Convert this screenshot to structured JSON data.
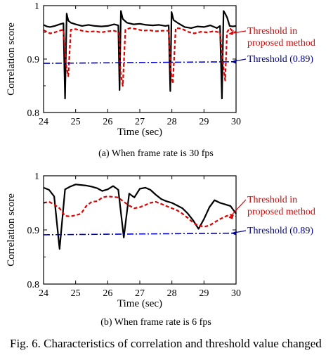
{
  "caption": "Fig. 6.    Characteristics of correlation and threshold value changed",
  "colors": {
    "correlation": "#000000",
    "proposed_threshold": "#e00000",
    "fixed_threshold": "#0000cc",
    "annotation_blue": "#000099"
  },
  "chart_data": [
    {
      "type": "line",
      "subtitle": "(a) When frame rate is 30 fps",
      "xlabel": "Time (sec)",
      "ylabel": "Correlation score",
      "xlim": [
        24,
        30
      ],
      "ylim": [
        0.8,
        1.0
      ],
      "xticks": [
        "24",
        "25",
        "26",
        "27",
        "28",
        "29",
        "30"
      ],
      "yticks": [
        "0.8",
        "0.9",
        "1"
      ],
      "grid": false,
      "annotations": {
        "proposed_line1": "Threshold in",
        "proposed_line2": "proposed method",
        "fixed": "Threshold (0.89)"
      },
      "series": [
        {
          "style": "solid-black",
          "x": [
            24.0,
            24.1,
            24.2,
            24.35,
            24.5,
            24.62,
            24.67,
            24.72,
            24.77,
            24.85,
            25.0,
            25.2,
            25.4,
            25.6,
            25.8,
            26.0,
            26.2,
            26.33,
            26.37,
            26.41,
            26.47,
            26.6,
            26.8,
            27.0,
            27.2,
            27.4,
            27.6,
            27.8,
            27.9,
            27.95,
            27.99,
            28.05,
            28.2,
            28.4,
            28.6,
            28.8,
            29.0,
            29.2,
            29.4,
            29.5,
            29.56,
            29.61,
            29.66,
            29.72,
            29.8,
            29.9,
            30.0
          ],
          "y": [
            0.964,
            0.961,
            0.96,
            0.962,
            0.965,
            0.967,
            0.826,
            0.985,
            0.972,
            0.968,
            0.965,
            0.962,
            0.964,
            0.962,
            0.961,
            0.962,
            0.965,
            0.963,
            0.842,
            0.99,
            0.975,
            0.968,
            0.965,
            0.966,
            0.964,
            0.963,
            0.964,
            0.962,
            0.963,
            0.84,
            0.988,
            0.973,
            0.967,
            0.96,
            0.958,
            0.961,
            0.96,
            0.963,
            0.958,
            0.962,
            0.826,
            0.99,
            0.985,
            0.978,
            0.962,
            0.961,
            0.962
          ]
        },
        {
          "style": "dashed-red",
          "x": [
            24.0,
            24.1,
            24.2,
            24.35,
            24.5,
            24.62,
            24.7,
            24.77,
            24.85,
            25.0,
            25.2,
            25.4,
            25.6,
            25.8,
            26.0,
            26.2,
            26.35,
            26.4,
            26.47,
            26.55,
            26.7,
            26.9,
            27.1,
            27.3,
            27.5,
            27.7,
            27.9,
            27.97,
            28.03,
            28.12,
            28.3,
            28.5,
            28.7,
            28.9,
            29.1,
            29.3,
            29.5,
            29.6,
            29.66,
            29.72,
            29.8,
            29.9,
            30.0
          ],
          "y": [
            0.954,
            0.951,
            0.948,
            0.95,
            0.953,
            0.955,
            0.89,
            0.868,
            0.955,
            0.956,
            0.953,
            0.951,
            0.952,
            0.95,
            0.952,
            0.953,
            0.95,
            0.875,
            0.85,
            0.955,
            0.958,
            0.956,
            0.953,
            0.954,
            0.952,
            0.953,
            0.953,
            0.877,
            0.854,
            0.958,
            0.957,
            0.951,
            0.948,
            0.951,
            0.95,
            0.952,
            0.95,
            0.89,
            0.86,
            0.95,
            0.958,
            0.952,
            0.95
          ]
        },
        {
          "style": "dashdot-blue",
          "x": [
            24,
            30
          ],
          "y": [
            0.892,
            0.895
          ]
        }
      ]
    },
    {
      "type": "line",
      "subtitle": "(b) When frame rate is 6 fps",
      "xlabel": "Time (sec)",
      "ylabel": "Correlation score",
      "xlim": [
        24,
        30
      ],
      "ylim": [
        0.8,
        1.0
      ],
      "xticks": [
        "24",
        "25",
        "26",
        "27",
        "28",
        "29",
        "30"
      ],
      "yticks": [
        "0.8",
        "0.9",
        "1"
      ],
      "grid": false,
      "annotations": {
        "proposed_line1": "Threshold in",
        "proposed_line2": "proposed method",
        "fixed": "Threshold (0.89)"
      },
      "series": [
        {
          "style": "solid-black",
          "x": [
            24.0,
            24.17,
            24.33,
            24.5,
            24.67,
            24.83,
            25.0,
            25.17,
            25.33,
            25.5,
            25.67,
            25.83,
            26.0,
            26.17,
            26.33,
            26.5,
            26.67,
            26.83,
            27.0,
            27.17,
            27.33,
            27.5,
            27.67,
            27.83,
            28.0,
            28.17,
            28.33,
            28.5,
            28.67,
            28.83,
            29.0,
            29.17,
            29.33,
            29.5,
            29.67,
            29.83,
            30.0
          ],
          "y": [
            0.978,
            0.974,
            0.962,
            0.865,
            0.975,
            0.98,
            0.984,
            0.983,
            0.982,
            0.98,
            0.977,
            0.972,
            0.975,
            0.981,
            0.974,
            0.886,
            0.967,
            0.96,
            0.976,
            0.978,
            0.974,
            0.965,
            0.957,
            0.953,
            0.95,
            0.945,
            0.94,
            0.93,
            0.917,
            0.902,
            0.92,
            0.942,
            0.955,
            0.95,
            0.947,
            0.944,
            0.93
          ]
        },
        {
          "style": "dashed-red",
          "x": [
            24.0,
            24.17,
            24.33,
            24.5,
            24.67,
            24.83,
            25.0,
            25.17,
            25.33,
            25.5,
            25.67,
            25.83,
            26.0,
            26.17,
            26.33,
            26.5,
            26.67,
            26.83,
            27.0,
            27.17,
            27.33,
            27.5,
            27.67,
            27.83,
            28.0,
            28.17,
            28.33,
            28.5,
            28.67,
            28.83,
            29.0,
            29.17,
            29.33,
            29.5,
            29.67,
            29.83,
            30.0
          ],
          "y": [
            0.95,
            0.952,
            0.947,
            0.94,
            0.926,
            0.925,
            0.927,
            0.93,
            0.944,
            0.952,
            0.953,
            0.96,
            0.962,
            0.961,
            0.96,
            0.952,
            0.945,
            0.94,
            0.942,
            0.946,
            0.95,
            0.952,
            0.948,
            0.944,
            0.94,
            0.936,
            0.93,
            0.922,
            0.913,
            0.908,
            0.906,
            0.908,
            0.914,
            0.92,
            0.925,
            0.928,
            0.925
          ]
        },
        {
          "style": "dashdot-blue",
          "x": [
            24,
            30
          ],
          "y": [
            0.891,
            0.894
          ]
        }
      ]
    }
  ]
}
